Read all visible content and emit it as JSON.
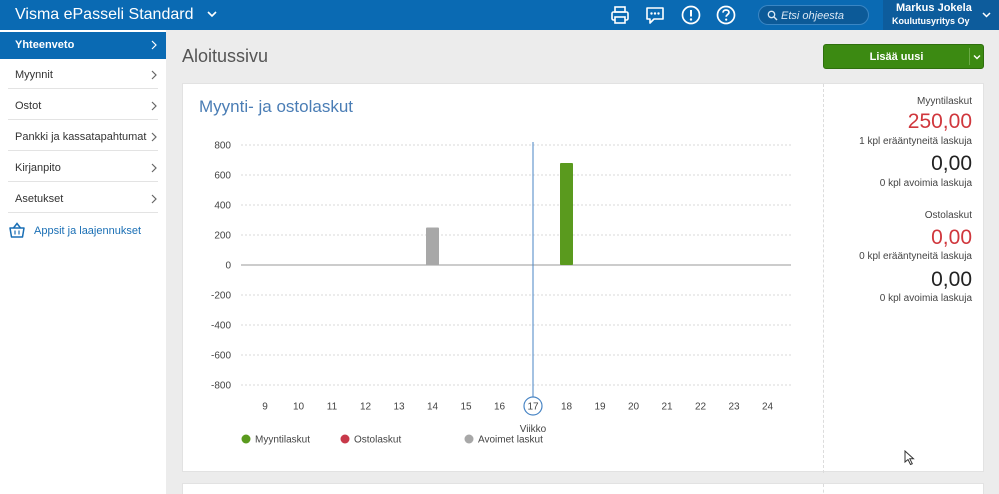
{
  "header": {
    "app_title": "Visma ePasseli Standard",
    "search_placeholder": "Etsi ohjeesta",
    "user_name": "Markus Jokela",
    "user_company": "Koulutusyritys Oy",
    "icons": [
      "printer-icon",
      "chat-icon",
      "alert-icon",
      "help-icon",
      "search-icon"
    ]
  },
  "sidebar": {
    "items": [
      {
        "label": "Yhteenveto",
        "active": true
      },
      {
        "label": "Myynnit",
        "active": false
      },
      {
        "label": "Ostot",
        "active": false
      },
      {
        "label": "Pankki ja kassatapahtumat",
        "active": false
      },
      {
        "label": "Kirjanpito",
        "active": false
      },
      {
        "label": "Asetukset",
        "active": false
      }
    ],
    "apps_link": "Appsit ja laajennukset"
  },
  "main": {
    "page_title": "Aloitussivu",
    "add_button": "Lisää uusi"
  },
  "chart_card": {
    "title": "Myynti- ja ostolaskut"
  },
  "chart_data": {
    "type": "bar",
    "xlabel": "Viikko",
    "ylabel": "",
    "ylim": [
      -800,
      800
    ],
    "yticks": [
      800,
      600,
      400,
      200,
      0,
      -200,
      -400,
      -600,
      -800
    ],
    "categories": [
      "9",
      "10",
      "11",
      "12",
      "13",
      "14",
      "15",
      "16",
      "17",
      "18",
      "19",
      "20",
      "21",
      "22",
      "23",
      "24"
    ],
    "current_week": "17",
    "grid": true,
    "legend_position": "bottom-left",
    "series": [
      {
        "name": "Myyntilaskut",
        "color": "#5a9a1e",
        "values": [
          0,
          0,
          0,
          0,
          0,
          0,
          0,
          0,
          0,
          680,
          0,
          0,
          0,
          0,
          0,
          0
        ]
      },
      {
        "name": "Ostolaskut",
        "color": "#c8394a",
        "values": [
          0,
          0,
          0,
          0,
          0,
          0,
          0,
          0,
          0,
          0,
          0,
          0,
          0,
          0,
          0,
          0
        ]
      },
      {
        "name": "Avoimet laskut",
        "color": "#a8a8a8",
        "values": [
          0,
          0,
          0,
          0,
          0,
          250,
          0,
          0,
          0,
          0,
          0,
          0,
          0,
          0,
          0,
          0
        ]
      }
    ]
  },
  "summary": {
    "sales_heading": "Myyntilaskut",
    "sales_overdue_value": "250,00",
    "sales_overdue_label": "1 kpl erääntyneitä laskuja",
    "sales_open_value": "0,00",
    "sales_open_label": "0 kpl avoimia laskuja",
    "purchase_heading": "Ostolaskut",
    "purchase_overdue_value": "0,00",
    "purchase_overdue_label": "0 kpl erääntyneitä laskuja",
    "purchase_open_value": "0,00",
    "purchase_open_label": "0 kpl avoimia laskuja"
  },
  "colors": {
    "topbar": "#0a6ab3",
    "accent_green": "#3c8a12",
    "red_value": "#d0373d",
    "title_blue": "#4a7db5"
  }
}
